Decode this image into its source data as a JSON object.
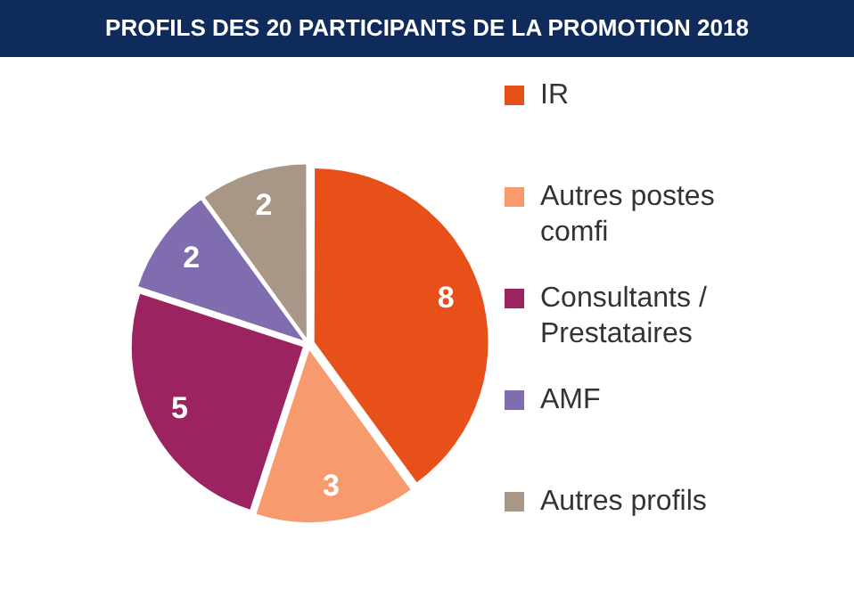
{
  "chart_data": {
    "type": "pie",
    "title": "PROFILS DES 20 PARTICIPANTS DE LA PROMOTION 2018",
    "categories": [
      "IR",
      "Autres postes comfi",
      "Consultants / Prestataires",
      "AMF",
      "Autres profils"
    ],
    "values": [
      8,
      3,
      5,
      2,
      2
    ],
    "colors": [
      "#e8501a",
      "#f79a6e",
      "#9b2360",
      "#7f6db0",
      "#a89686"
    ],
    "data_labels": true,
    "legend": "right"
  }
}
